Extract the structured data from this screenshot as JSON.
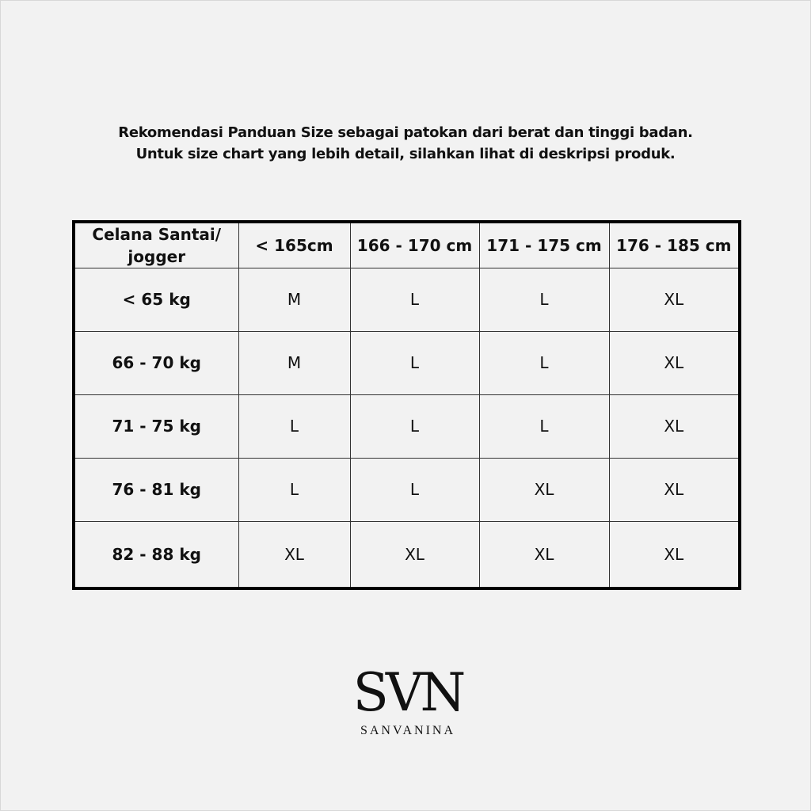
{
  "intro": {
    "line1": "Rekomendasi Panduan Size sebagai patokan dari berat dan tinggi badan.",
    "line2": "Untuk size chart yang lebih detail, silahkan lihat di deskripsi produk."
  },
  "table": {
    "corner": [
      "Celana Santai/",
      "jogger"
    ],
    "columns": [
      "< 165cm",
      "166 - 170 cm",
      "171 - 175 cm",
      "176 - 185 cm"
    ],
    "rows": [
      {
        "label": "< 65 kg",
        "values": [
          "M",
          "L",
          "L",
          "XL"
        ]
      },
      {
        "label": "66 - 70 kg",
        "values": [
          "M",
          "L",
          "L",
          "XL"
        ]
      },
      {
        "label": "71 - 75 kg",
        "values": [
          "L",
          "L",
          "L",
          "XL"
        ]
      },
      {
        "label": "76 - 81 kg",
        "values": [
          "L",
          "L",
          "XL",
          "XL"
        ]
      },
      {
        "label": "82 - 88 kg",
        "values": [
          "XL",
          "XL",
          "XL",
          "XL"
        ]
      }
    ]
  },
  "logo": {
    "mark": "SVN",
    "wordmark": "SANVANINA"
  }
}
